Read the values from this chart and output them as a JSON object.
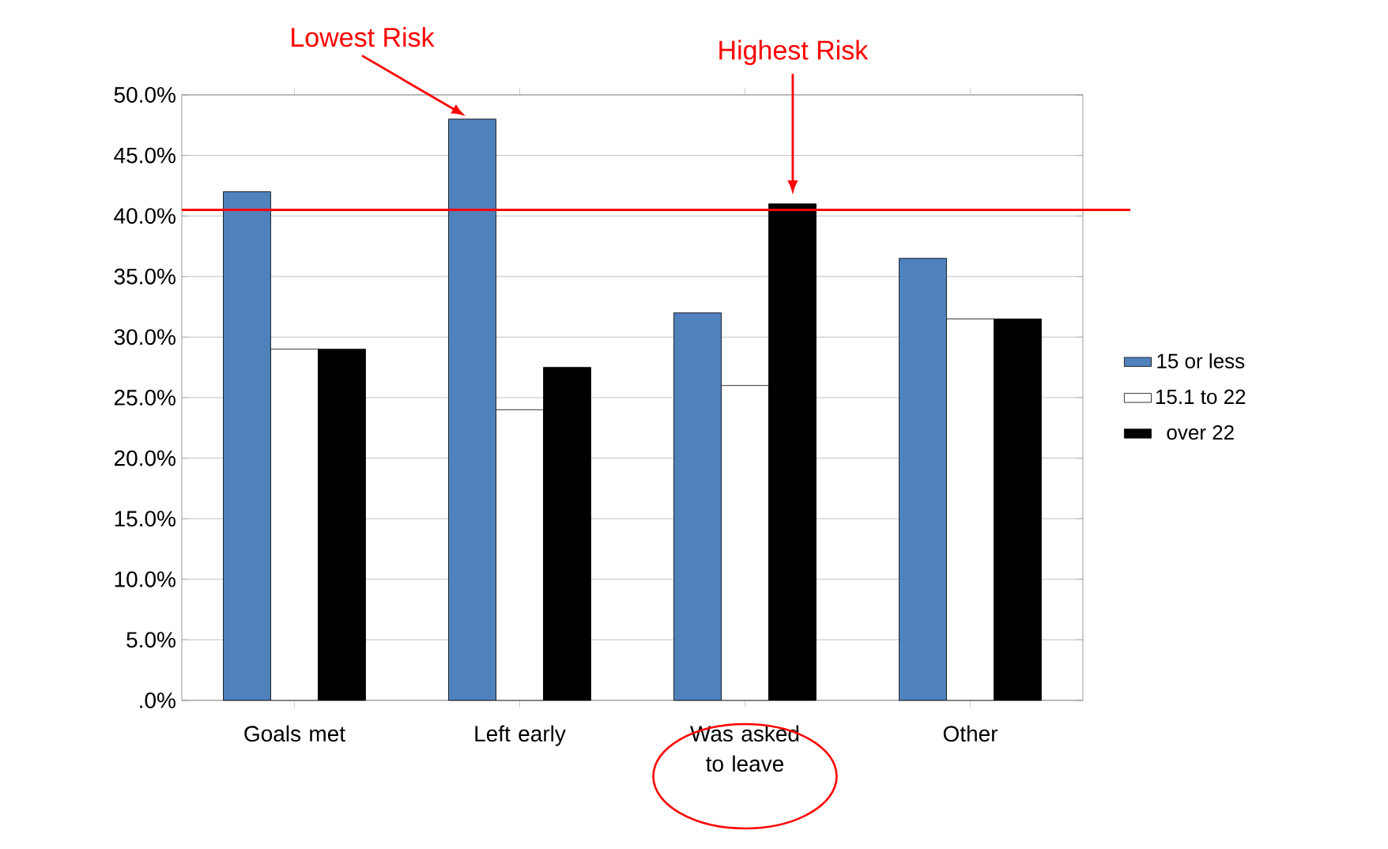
{
  "chart_data": {
    "type": "bar",
    "categories": [
      "Goals met",
      "Left early",
      "Was asked to leave",
      "Other"
    ],
    "series": [
      {
        "name": "15 or less",
        "color": "#4f81bd",
        "values": [
          42,
          48,
          32,
          36.5
        ]
      },
      {
        "name": "15.1 to 22",
        "color": "#ffffff",
        "values": [
          29,
          24,
          26,
          31.5
        ]
      },
      {
        "name": "over 22",
        "color": "#000000",
        "values": [
          29,
          27.5,
          41,
          31.5
        ]
      }
    ],
    "ylim": [
      0,
      50
    ],
    "yticks": [
      {
        "value": 0,
        "label": ".0%"
      },
      {
        "value": 5,
        "label": "5.0%"
      },
      {
        "value": 10,
        "label": "10.0%"
      },
      {
        "value": 15,
        "label": "15.0%"
      },
      {
        "value": 20,
        "label": "20.0%"
      },
      {
        "value": 25,
        "label": "25.0%"
      },
      {
        "value": 30,
        "label": "30.0%"
      },
      {
        "value": 35,
        "label": "35.0%"
      },
      {
        "value": 40,
        "label": "40.0%"
      },
      {
        "value": 45,
        "label": "45.0%"
      },
      {
        "value": 50,
        "label": "50.0%"
      }
    ],
    "grid": "y",
    "legend": "right",
    "ref_lines": [
      {
        "axis": "y",
        "value": 40.5,
        "color": "#ff0000"
      }
    ],
    "annotations": [
      "Lowest Risk",
      "Highest Risk"
    ]
  }
}
